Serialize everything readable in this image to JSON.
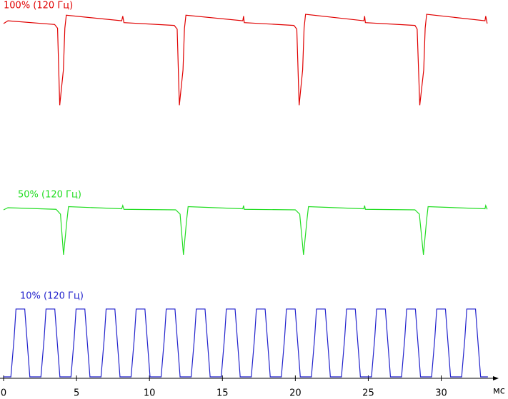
{
  "chart_data": {
    "type": "line",
    "x_label": "мс",
    "xlim": [
      0,
      33.5
    ],
    "xticks": [
      0,
      5,
      10,
      15,
      20,
      25,
      30
    ],
    "series": [
      {
        "name": "100% (120 Гц)",
        "color": "#e00000",
        "ylim": [
          0,
          100
        ],
        "x": [
          0,
          0.3,
          3.5,
          3.7,
          3.85,
          4.1,
          4.2,
          4.3,
          8.1,
          8.17,
          8.25,
          11.7,
          11.9,
          12.05,
          12.3,
          12.4,
          12.5,
          16.4,
          16.45,
          16.5,
          19.9,
          20.1,
          20.26,
          20.5,
          20.6,
          20.7,
          24.7,
          24.75,
          24.8,
          28.2,
          28.35,
          28.53,
          28.8,
          28.9,
          29.0,
          33.0,
          33.05,
          33.15
        ],
        "values": [
          90,
          93,
          89,
          85,
          2,
          40,
          85,
          99,
          93,
          98,
          91,
          88,
          84,
          2,
          40,
          85,
          99,
          93,
          98,
          91,
          88,
          84,
          2,
          40,
          85,
          100,
          93,
          98,
          91,
          88,
          84,
          2,
          40,
          85,
          100,
          93,
          98,
          90
        ]
      },
      {
        "name": "50% (120 Гц)",
        "color": "#22dd22",
        "ylim": [
          0,
          100
        ],
        "x": [
          0,
          0.3,
          3.6,
          3.9,
          4.11,
          4.35,
          4.45,
          8.1,
          8.17,
          8.25,
          11.8,
          12.1,
          12.33,
          12.55,
          12.65,
          16.4,
          16.45,
          16.5,
          20.0,
          20.3,
          20.56,
          20.8,
          20.9,
          24.7,
          24.75,
          24.8,
          28.2,
          28.5,
          28.78,
          29.0,
          29.1,
          33.0,
          33.05,
          33.15
        ],
        "values": [
          88,
          92,
          89,
          80,
          4,
          70,
          94,
          90,
          96,
          89,
          88,
          80,
          4,
          70,
          94,
          90,
          96,
          89,
          88,
          80,
          4,
          70,
          94,
          90,
          96,
          89,
          88,
          80,
          4,
          70,
          94,
          90,
          96,
          89
        ]
      },
      {
        "name": "10% (120 Гц)",
        "color": "#2222cc",
        "ylim": [
          0,
          100
        ],
        "x": [
          0,
          0.5,
          0.72,
          0.85,
          1.45,
          1.6,
          1.8,
          2.56,
          2.78,
          2.91,
          3.51,
          3.66,
          3.86,
          4.62,
          4.84,
          4.97,
          5.57,
          5.72,
          5.92,
          6.68,
          6.9,
          7.03,
          7.63,
          7.78,
          7.98,
          8.74,
          8.96,
          9.09,
          9.69,
          9.84,
          10.04,
          10.8,
          11.02,
          11.15,
          11.75,
          11.9,
          12.1,
          12.86,
          13.08,
          13.21,
          13.81,
          13.96,
          14.16,
          14.92,
          15.14,
          15.27,
          15.87,
          16.02,
          16.22,
          16.98,
          17.2,
          17.33,
          17.93,
          18.08,
          18.28,
          19.04,
          19.26,
          19.39,
          19.99,
          20.14,
          20.34,
          21.1,
          21.32,
          21.45,
          22.05,
          22.2,
          22.4,
          23.16,
          23.38,
          23.51,
          24.11,
          24.26,
          24.46,
          25.22,
          25.44,
          25.57,
          26.17,
          26.32,
          26.52,
          27.28,
          27.5,
          27.63,
          28.23,
          28.38,
          28.58,
          29.34,
          29.56,
          29.69,
          30.29,
          30.44,
          30.64,
          31.4,
          31.62,
          31.75,
          32.35,
          32.5,
          32.7,
          33.2
        ],
        "values": [
          0,
          0,
          55,
          97,
          97,
          55,
          0,
          0,
          55,
          97,
          97,
          55,
          0,
          0,
          55,
          97,
          97,
          55,
          0,
          0,
          55,
          97,
          97,
          55,
          0,
          0,
          55,
          97,
          97,
          55,
          0,
          0,
          55,
          97,
          97,
          55,
          0,
          0,
          55,
          97,
          97,
          55,
          0,
          0,
          55,
          97,
          97,
          55,
          0,
          0,
          55,
          97,
          97,
          55,
          0,
          0,
          55,
          97,
          97,
          55,
          0,
          0,
          55,
          97,
          97,
          55,
          0,
          0,
          55,
          97,
          97,
          55,
          0,
          0,
          55,
          97,
          97,
          55,
          0,
          0,
          55,
          97,
          97,
          55,
          0,
          0,
          55,
          97,
          97,
          55,
          0,
          0,
          55,
          97,
          97,
          55,
          0,
          0
        ]
      }
    ]
  }
}
